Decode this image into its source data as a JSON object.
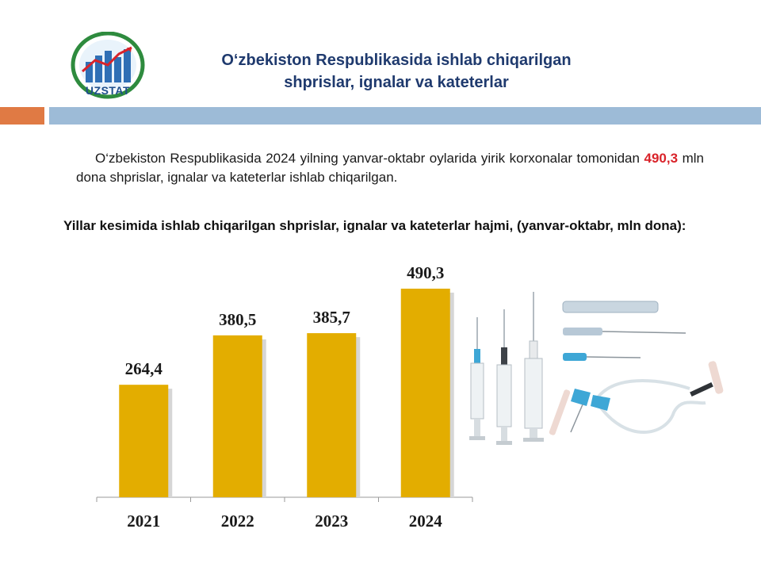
{
  "header": {
    "logo_text": "UZSTAT",
    "title_line1": "O‘zbekiston Respublikasida ishlab chiqarilgan",
    "title_line2": "shprislar, ignalar va kateterlar"
  },
  "intro": {
    "before": "O‘zbekiston  Respublikasida 2024 yilning yanvar-oktabr oylarida yirik korxonalar tomonidan ",
    "highlight": "490,3",
    "after": " mln dona shprislar, ignalar va kateterlar ishlab chiqarilgan."
  },
  "chart_subtitle": "Yillar kesimida ishlab chiqarilgan shprislar, ignalar va kateterlar hajmi, (yanvar-oktabr, mln dona):",
  "chart_data": {
    "type": "bar",
    "categories": [
      "2021",
      "2022",
      "2023",
      "2024"
    ],
    "values": [
      264.4,
      380.5,
      385.7,
      490.3
    ],
    "value_labels": [
      "264,4",
      "380,5",
      "385,7",
      "490,3"
    ],
    "ylim": [
      0,
      535
    ],
    "grid": false,
    "bar_color": "#e3ad00"
  },
  "colors": {
    "title": "#1f3a6e",
    "highlight": "#d9232a",
    "rule_orange": "#e07a44",
    "rule_blue": "#9dbbd7"
  },
  "illustration": {
    "icon": "syringes-needles-catheter-illustration"
  }
}
